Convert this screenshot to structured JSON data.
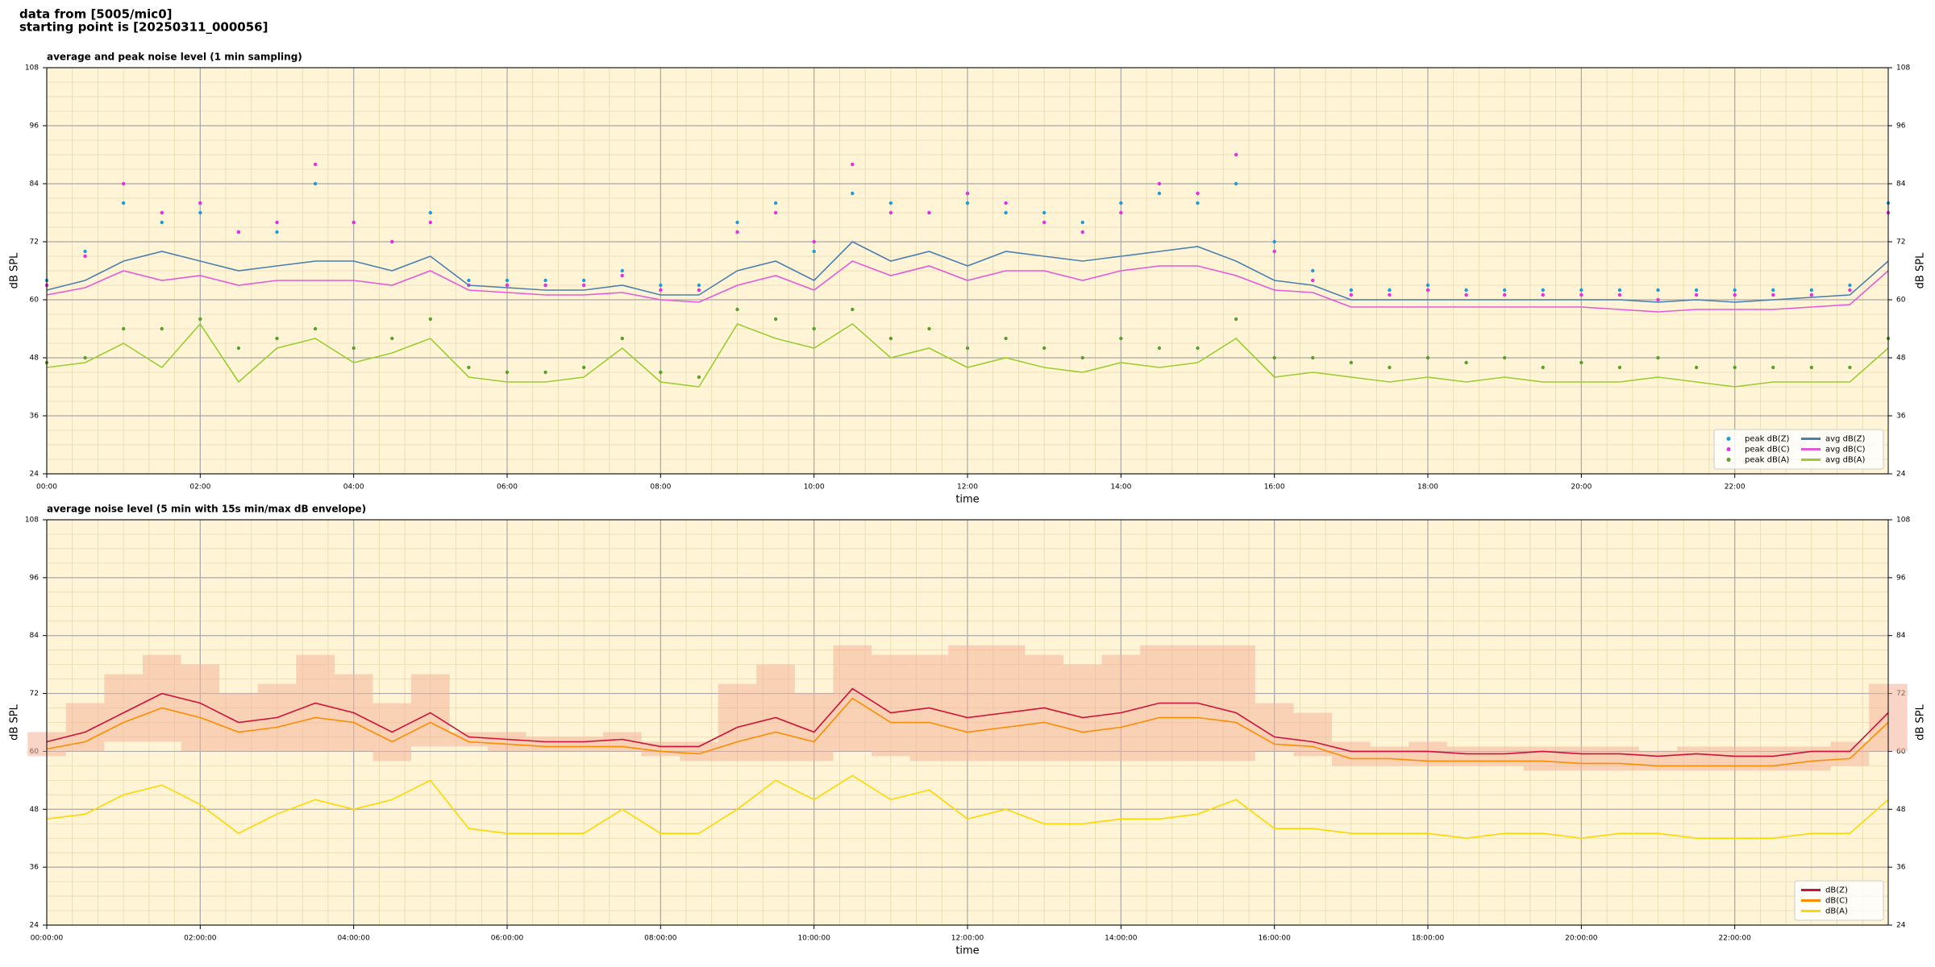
{
  "page": {
    "title_lines": [
      "data from [5005/mic0]",
      "starting point is [20250311_000056]"
    ]
  },
  "chart_data": [
    {
      "type": "line",
      "title": "average and peak noise level (1 min sampling)",
      "xlabel": "time",
      "ylabel": "dB SPL",
      "xlim": [
        0,
        24
      ],
      "ylim": [
        24,
        108
      ],
      "yticks": [
        24,
        36,
        48,
        60,
        72,
        84,
        96,
        108
      ],
      "xticks": [
        {
          "value": 0,
          "label": "00:00"
        },
        {
          "value": 2,
          "label": "02:00"
        },
        {
          "value": 4,
          "label": "04:00"
        },
        {
          "value": 6,
          "label": "06:00"
        },
        {
          "value": 8,
          "label": "08:00"
        },
        {
          "value": 10,
          "label": "10:00"
        },
        {
          "value": 12,
          "label": "12:00"
        },
        {
          "value": 14,
          "label": "14:00"
        },
        {
          "value": 16,
          "label": "16:00"
        },
        {
          "value": 18,
          "label": "18:00"
        },
        {
          "value": 20,
          "label": "20:00"
        },
        {
          "value": 22,
          "label": "22:00"
        }
      ],
      "grid": true,
      "legend": "lower right",
      "background": "#fff5d6",
      "x": [
        0,
        0.5,
        1,
        1.5,
        2,
        2.5,
        3,
        3.5,
        4,
        4.5,
        5,
        5.5,
        6,
        6.5,
        7,
        7.5,
        8,
        8.5,
        9,
        9.5,
        10,
        10.5,
        11,
        11.5,
        12,
        12.5,
        13,
        13.5,
        14,
        14.5,
        15,
        15.5,
        16,
        16.5,
        17,
        17.5,
        18,
        18.5,
        19,
        19.5,
        20,
        20.5,
        21,
        21.5,
        22,
        22.5,
        23,
        23.5,
        24
      ],
      "series": [
        {
          "name": "peak dB(Z)",
          "style": "dots",
          "color": "#1f9bd6",
          "values": [
            64,
            70,
            80,
            76,
            78,
            74,
            74,
            84,
            76,
            72,
            78,
            64,
            64,
            64,
            64,
            66,
            63,
            63,
            76,
            80,
            70,
            82,
            80,
            78,
            80,
            78,
            78,
            76,
            80,
            82,
            80,
            84,
            72,
            66,
            62,
            62,
            63,
            62,
            62,
            62,
            62,
            62,
            62,
            62,
            62,
            62,
            62,
            63,
            80
          ]
        },
        {
          "name": "peak dB(C)",
          "style": "dots",
          "color": "#e62ee0",
          "values": [
            63,
            69,
            84,
            78,
            80,
            74,
            76,
            88,
            76,
            72,
            76,
            63,
            63,
            63,
            63,
            65,
            62,
            62,
            74,
            78,
            72,
            88,
            78,
            78,
            82,
            80,
            76,
            74,
            78,
            84,
            82,
            90,
            70,
            64,
            61,
            61,
            62,
            61,
            61,
            61,
            61,
            61,
            60,
            61,
            61,
            61,
            61,
            62,
            78
          ]
        },
        {
          "name": "peak dB(A)",
          "style": "dots",
          "color": "#5aa02c",
          "values": [
            47,
            48,
            54,
            54,
            56,
            50,
            52,
            54,
            50,
            52,
            56,
            46,
            45,
            45,
            46,
            52,
            45,
            44,
            58,
            56,
            54,
            58,
            52,
            54,
            50,
            52,
            50,
            48,
            52,
            50,
            50,
            56,
            48,
            48,
            47,
            46,
            48,
            47,
            48,
            46,
            47,
            46,
            48,
            46,
            46,
            46,
            46,
            46,
            52
          ]
        },
        {
          "name": "avg dB(Z)",
          "style": "line",
          "color": "#4a7fb0",
          "values": [
            62,
            64,
            68,
            70,
            68,
            66,
            67,
            68,
            68,
            66,
            69,
            63,
            62.5,
            62,
            62,
            63,
            61,
            61,
            66,
            68,
            64,
            72,
            68,
            70,
            67,
            70,
            69,
            68,
            69,
            70,
            71,
            68,
            64,
            63,
            60,
            60,
            60,
            60,
            60,
            60,
            60,
            60,
            59.5,
            60,
            59.5,
            60,
            60.5,
            61,
            68
          ]
        },
        {
          "name": "avg dB(C)",
          "style": "line",
          "color": "#e45ad8",
          "values": [
            61,
            62.5,
            66,
            64,
            65,
            63,
            64,
            64,
            64,
            63,
            66,
            62,
            61.5,
            61,
            61,
            61.5,
            60,
            59.5,
            63,
            65,
            62,
            68,
            65,
            67,
            64,
            66,
            66,
            64,
            66,
            67,
            67,
            65,
            62,
            61.5,
            58.5,
            58.5,
            58.5,
            58.5,
            58.5,
            58.5,
            58.5,
            58,
            57.5,
            58,
            58,
            58,
            58.5,
            59,
            66
          ]
        },
        {
          "name": "avg dB(A)",
          "style": "line",
          "color": "#9acd32",
          "values": [
            46,
            47,
            51,
            46,
            55,
            43,
            50,
            52,
            47,
            49,
            52,
            44,
            43,
            43,
            44,
            50,
            43,
            42,
            55,
            52,
            50,
            55,
            48,
            50,
            46,
            48,
            46,
            45,
            47,
            46,
            47,
            52,
            44,
            45,
            44,
            43,
            44,
            43,
            44,
            43,
            43,
            43,
            44,
            43,
            42,
            43,
            43,
            43,
            50
          ]
        }
      ]
    },
    {
      "type": "line",
      "title": "average noise level (5 min with 15s min/max dB envelope)",
      "xlabel": "time",
      "ylabel": "dB SPL",
      "xlim": [
        0,
        24
      ],
      "ylim": [
        24,
        108
      ],
      "yticks": [
        24,
        36,
        48,
        60,
        72,
        84,
        96,
        108
      ],
      "xticks": [
        {
          "value": 0,
          "label": "00:00:00"
        },
        {
          "value": 2,
          "label": "02:00:00"
        },
        {
          "value": 4,
          "label": "04:00:00"
        },
        {
          "value": 6,
          "label": "06:00:00"
        },
        {
          "value": 8,
          "label": "08:00:00"
        },
        {
          "value": 10,
          "label": "10:00:00"
        },
        {
          "value": 12,
          "label": "12:00:00"
        },
        {
          "value": 14,
          "label": "14:00:00"
        },
        {
          "value": 16,
          "label": "16:00:00"
        },
        {
          "value": 18,
          "label": "18:00:00"
        },
        {
          "value": 20,
          "label": "20:00:00"
        },
        {
          "value": 22,
          "label": "22:00:00"
        }
      ],
      "grid": true,
      "legend": "lower right",
      "background": "#fff5d6",
      "x": [
        0,
        0.5,
        1,
        1.5,
        2,
        2.5,
        3,
        3.5,
        4,
        4.5,
        5,
        5.5,
        6,
        6.5,
        7,
        7.5,
        8,
        8.5,
        9,
        9.5,
        10,
        10.5,
        11,
        11.5,
        12,
        12.5,
        13,
        13.5,
        14,
        14.5,
        15,
        15.5,
        16,
        16.5,
        17,
        17.5,
        18,
        18.5,
        19,
        19.5,
        20,
        20.5,
        21,
        21.5,
        22,
        22.5,
        23,
        23.5,
        24
      ],
      "envelope": {
        "color": "#f4b39a",
        "upper": [
          64,
          70,
          76,
          80,
          78,
          72,
          74,
          80,
          76,
          70,
          76,
          64,
          64,
          63,
          63,
          64,
          62,
          62,
          74,
          78,
          72,
          82,
          80,
          80,
          82,
          82,
          80,
          78,
          80,
          82,
          82,
          82,
          70,
          68,
          62,
          61,
          62,
          61,
          61,
          61,
          61,
          61,
          60,
          61,
          61,
          61,
          61,
          62,
          74
        ],
        "lower": [
          59,
          60,
          62,
          62,
          60,
          60,
          60,
          60,
          60,
          58,
          61,
          61,
          60,
          60,
          60,
          60,
          59,
          58,
          58,
          58,
          58,
          60,
          59,
          58,
          58,
          58,
          58,
          58,
          58,
          58,
          58,
          58,
          60,
          59,
          57,
          57,
          57,
          57,
          57,
          56,
          56,
          56,
          56,
          56,
          56,
          56,
          56,
          57,
          60
        ]
      },
      "series": [
        {
          "name": "dB(Z)",
          "style": "line",
          "color": "#d0103a",
          "values": [
            62,
            64,
            68,
            72,
            70,
            66,
            67,
            70,
            68,
            64,
            68,
            63,
            62.5,
            62,
            62,
            62.5,
            61,
            61,
            65,
            67,
            64,
            73,
            68,
            69,
            67,
            68,
            69,
            67,
            68,
            70,
            70,
            68,
            63,
            62,
            60,
            60,
            60,
            59.5,
            59.5,
            60,
            59.5,
            59.5,
            59,
            59.5,
            59,
            59,
            60,
            60,
            68
          ]
        },
        {
          "name": "dB(C)",
          "style": "line",
          "color": "#ff8c00",
          "values": [
            60.5,
            62,
            66,
            69,
            67,
            64,
            65,
            67,
            66,
            62,
            66,
            62,
            61.5,
            61,
            61,
            61,
            60,
            59.5,
            62,
            64,
            62,
            71,
            66,
            66,
            64,
            65,
            66,
            64,
            65,
            67,
            67,
            66,
            61.5,
            61,
            58.5,
            58.5,
            58,
            58,
            58,
            58,
            57.5,
            57.5,
            57,
            57,
            57,
            57,
            58,
            58.5,
            66
          ]
        },
        {
          "name": "dB(A)",
          "style": "line",
          "color": "#ffd700",
          "values": [
            46,
            47,
            51,
            53,
            49,
            43,
            47,
            50,
            48,
            50,
            54,
            44,
            43,
            43,
            43,
            48,
            43,
            43,
            48,
            54,
            50,
            55,
            50,
            52,
            46,
            48,
            45,
            45,
            46,
            46,
            47,
            50,
            44,
            44,
            43,
            43,
            43,
            42,
            43,
            43,
            42,
            43,
            43,
            42,
            42,
            42,
            43,
            43,
            50
          ]
        }
      ]
    }
  ]
}
